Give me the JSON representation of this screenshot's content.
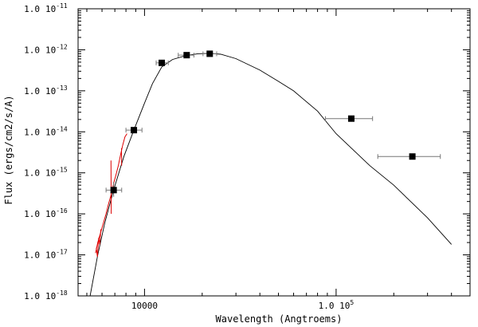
{
  "chart_data": {
    "type": "scatter",
    "xlabel": "Wavelength (Angtroems)",
    "ylabel": "Flux (ergs/cm2/s/A)",
    "x_scale": "log",
    "y_scale": "log",
    "xlim": [
      4500,
      500000
    ],
    "ylim": [
      1e-18,
      1e-11
    ],
    "x_tick_labels": [
      {
        "value": 10000,
        "label": "10000"
      },
      {
        "value": 100000,
        "label": "1.0 10^5"
      }
    ],
    "y_tick_labels": [
      {
        "value": 1e-18,
        "label": "1.0 10^-18"
      },
      {
        "value": 1e-17,
        "label": "1.0 10^-17"
      },
      {
        "value": 1e-16,
        "label": "1.0 10^-16"
      },
      {
        "value": 1e-15,
        "label": "1.0 10^-15"
      },
      {
        "value": 1e-14,
        "label": "1.0 10^-14"
      },
      {
        "value": 1e-13,
        "label": "1.0 10^-13"
      },
      {
        "value": 1e-12,
        "label": "1.0 10^-12"
      },
      {
        "value": 1e-11,
        "label": "1.0 10^-11"
      }
    ],
    "colors": {
      "points": "#000000",
      "model": "#000000",
      "spectrum": "#dd0000",
      "errorbars": "#777777"
    },
    "photometry": [
      {
        "x": 6900,
        "xerr": [
          6300,
          7600
        ],
        "y": 3.8e-16,
        "yerr": [
          2.6e-16,
          6e-16
        ]
      },
      {
        "x": 8800,
        "xerr": [
          8000,
          9700
        ],
        "y": 1.1e-14
      },
      {
        "x": 12300,
        "xerr": [
          11500,
          13300
        ],
        "y": 4.8e-13
      },
      {
        "x": 16600,
        "xerr": [
          15000,
          18100
        ],
        "y": 7.4e-13
      },
      {
        "x": 21900,
        "xerr": [
          20200,
          23800
        ],
        "y": 8e-13
      },
      {
        "x": 120000,
        "xerr": [
          88000,
          155000
        ],
        "y": 2.1e-14
      },
      {
        "x": 250000,
        "xerr": [
          165000,
          350000
        ],
        "y": 2.5e-15
      }
    ],
    "model_curve": [
      [
        5200,
        1e-18
      ],
      [
        5700,
        1e-17
      ],
      [
        6200,
        6e-17
      ],
      [
        6900,
        3.8e-16
      ],
      [
        7800,
        2.5e-15
      ],
      [
        8800,
        1.1e-14
      ],
      [
        10000,
        5e-14
      ],
      [
        11000,
        1.5e-13
      ],
      [
        12300,
        3.8e-13
      ],
      [
        14000,
        5.8e-13
      ],
      [
        16600,
        7.3e-13
      ],
      [
        19000,
        8e-13
      ],
      [
        21900,
        8.2e-13
      ],
      [
        25000,
        7.8e-13
      ],
      [
        30000,
        6.1e-13
      ],
      [
        40000,
        3.2e-13
      ],
      [
        50000,
        1.7e-13
      ],
      [
        60000,
        1e-13
      ],
      [
        80000,
        3.2e-14
      ],
      [
        100000,
        9e-15
      ],
      [
        150000,
        1.5e-15
      ],
      [
        200000,
        5e-16
      ],
      [
        300000,
        8e-17
      ],
      [
        400000,
        1.8e-17
      ]
    ],
    "spectrum_segments": [
      [
        [
          5550,
          1.1e-17
        ],
        [
          5700,
          2e-17
        ],
        [
          5900,
          3.5e-17
        ],
        [
          6100,
          6e-17
        ],
        [
          6300,
          1e-16
        ],
        [
          6500,
          1.8e-16
        ],
        [
          6700,
          3e-16
        ],
        [
          6900,
          5.5e-16
        ],
        [
          7100,
          9e-16
        ],
        [
          7300,
          1.5e-15
        ],
        [
          7500,
          2.8e-15
        ],
        [
          7700,
          4.8e-15
        ],
        [
          7900,
          7.5e-15
        ],
        [
          8100,
          9e-15
        ]
      ],
      [
        [
          5600,
          1.5e-17
        ],
        [
          5680,
          9e-18
        ],
        [
          5760,
          2.6e-17
        ],
        [
          5840,
          1.8e-17
        ],
        [
          5920,
          4.2e-17
        ]
      ],
      [
        [
          6680,
          2e-15
        ],
        [
          6700,
          1e-16
        ]
      ],
      [
        [
          7580,
          4e-15
        ],
        [
          7600,
          1.5e-15
        ]
      ]
    ]
  }
}
